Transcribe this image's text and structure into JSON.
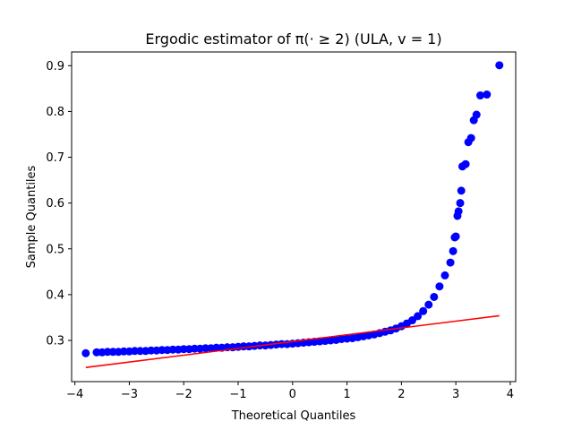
{
  "chart_data": {
    "type": "scatter",
    "title": "Ergodic estimator of π(· ≥ 2) (ULA, v = 1)",
    "xlabel": "Theoretical Quantiles",
    "ylabel": "Sample Quantiles",
    "xlim": [
      -4.06,
      4.1
    ],
    "ylim": [
      0.21,
      0.93
    ],
    "xticks": [
      -4,
      -3,
      -2,
      -1,
      0,
      1,
      2,
      3,
      4
    ],
    "xtick_labels": [
      "−4",
      "−3",
      "−2",
      "−1",
      "0",
      "1",
      "2",
      "3",
      "4"
    ],
    "yticks": [
      0.3,
      0.4,
      0.5,
      0.6,
      0.7,
      0.8,
      0.9
    ],
    "ytick_labels": [
      "0.3",
      "0.4",
      "0.5",
      "0.6",
      "0.7",
      "0.8",
      "0.9"
    ],
    "grid": false,
    "legend": "none",
    "series": [
      {
        "kind": "points",
        "color": "#0000ff",
        "points": [
          [
            -3.8,
            0.272
          ],
          [
            -3.6,
            0.274
          ],
          [
            -3.5,
            0.274
          ],
          [
            -3.4,
            0.275
          ],
          [
            -3.3,
            0.275
          ],
          [
            -3.2,
            0.275
          ],
          [
            -3.1,
            0.276
          ],
          [
            -3.0,
            0.276
          ],
          [
            -2.9,
            0.277
          ],
          [
            -2.8,
            0.277
          ],
          [
            -2.7,
            0.277
          ],
          [
            -2.6,
            0.278
          ],
          [
            -2.5,
            0.278
          ],
          [
            -2.4,
            0.279
          ],
          [
            -2.3,
            0.279
          ],
          [
            -2.2,
            0.28
          ],
          [
            -2.1,
            0.28
          ],
          [
            -2.0,
            0.281
          ],
          [
            -1.9,
            0.281
          ],
          [
            -1.8,
            0.282
          ],
          [
            -1.7,
            0.282
          ],
          [
            -1.6,
            0.283
          ],
          [
            -1.5,
            0.283
          ],
          [
            -1.4,
            0.284
          ],
          [
            -1.3,
            0.284
          ],
          [
            -1.2,
            0.285
          ],
          [
            -1.1,
            0.285
          ],
          [
            -1.0,
            0.286
          ],
          [
            -0.9,
            0.287
          ],
          [
            -0.8,
            0.287
          ],
          [
            -0.7,
            0.288
          ],
          [
            -0.6,
            0.289
          ],
          [
            -0.5,
            0.289
          ],
          [
            -0.4,
            0.29
          ],
          [
            -0.3,
            0.291
          ],
          [
            -0.2,
            0.292
          ],
          [
            -0.1,
            0.292
          ],
          [
            0.0,
            0.293
          ],
          [
            0.1,
            0.294
          ],
          [
            0.2,
            0.295
          ],
          [
            0.3,
            0.296
          ],
          [
            0.4,
            0.297
          ],
          [
            0.5,
            0.298
          ],
          [
            0.6,
            0.299
          ],
          [
            0.7,
            0.3
          ],
          [
            0.8,
            0.301
          ],
          [
            0.9,
            0.303
          ],
          [
            1.0,
            0.304
          ],
          [
            1.1,
            0.305
          ],
          [
            1.2,
            0.307
          ],
          [
            1.3,
            0.309
          ],
          [
            1.4,
            0.311
          ],
          [
            1.5,
            0.313
          ],
          [
            1.6,
            0.316
          ],
          [
            1.7,
            0.319
          ],
          [
            1.8,
            0.322
          ],
          [
            1.9,
            0.326
          ],
          [
            2.0,
            0.331
          ],
          [
            2.1,
            0.337
          ],
          [
            2.2,
            0.344
          ],
          [
            2.3,
            0.353
          ],
          [
            2.4,
            0.364
          ],
          [
            2.5,
            0.378
          ],
          [
            2.6,
            0.395
          ],
          [
            2.7,
            0.418
          ],
          [
            2.8,
            0.442
          ],
          [
            2.9,
            0.47
          ],
          [
            2.95,
            0.495
          ],
          [
            2.98,
            0.525
          ],
          [
            3.0,
            0.527
          ],
          [
            3.03,
            0.572
          ],
          [
            3.05,
            0.582
          ],
          [
            3.08,
            0.6
          ],
          [
            3.1,
            0.627
          ],
          [
            3.12,
            0.68
          ],
          [
            3.18,
            0.685
          ],
          [
            3.23,
            0.733
          ],
          [
            3.28,
            0.742
          ],
          [
            3.33,
            0.781
          ],
          [
            3.38,
            0.793
          ],
          [
            3.45,
            0.835
          ],
          [
            3.57,
            0.837
          ],
          [
            3.8,
            0.901
          ]
        ]
      },
      {
        "kind": "line",
        "color": "#ff0000",
        "points": [
          [
            -3.8,
            0.241
          ],
          [
            3.8,
            0.354
          ]
        ]
      }
    ]
  }
}
